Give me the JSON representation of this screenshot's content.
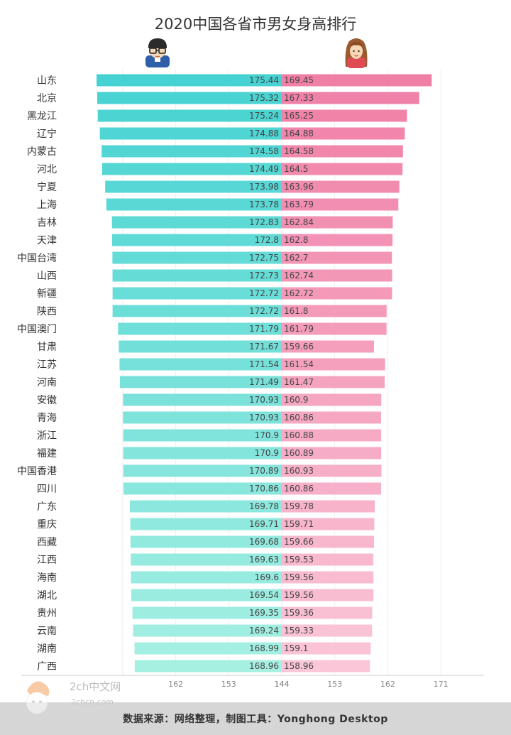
{
  "chart_data": {
    "type": "bar",
    "title": "2020中国各省市男女身高排行",
    "categories": [
      "山东",
      "北京",
      "黑龙江",
      "辽宁",
      "内蒙古",
      "河北",
      "宁夏",
      "上海",
      "吉林",
      "天津",
      "中国台湾",
      "山西",
      "新疆",
      "陕西",
      "中国澳门",
      "甘肃",
      "江苏",
      "河南",
      "安徽",
      "青海",
      "浙江",
      "福建",
      "中国香港",
      "四川",
      "广东",
      "重庆",
      "西藏",
      "江西",
      "海南",
      "湖北",
      "贵州",
      "云南",
      "湖南",
      "广西"
    ],
    "series": [
      {
        "values": [
          175.44,
          175.32,
          175.24,
          174.88,
          174.58,
          174.49,
          173.98,
          173.78,
          172.83,
          172.8,
          172.75,
          172.73,
          172.72,
          172.72,
          171.79,
          171.67,
          171.54,
          171.49,
          170.93,
          170.93,
          170.9,
          170.9,
          170.89,
          170.86,
          169.78,
          169.71,
          169.68,
          169.63,
          169.6,
          169.54,
          169.35,
          169.24,
          168.99,
          168.96
        ]
      },
      {
        "values": [
          169.45,
          167.33,
          165.25,
          164.88,
          164.58,
          164.5,
          163.96,
          163.79,
          162.84,
          162.8,
          162.7,
          162.74,
          162.72,
          161.8,
          161.79,
          159.66,
          161.54,
          161.47,
          160.9,
          160.86,
          160.88,
          160.89,
          160.93,
          160.86,
          159.78,
          159.71,
          159.66,
          159.53,
          159.56,
          159.56,
          159.36,
          159.33,
          159.1,
          158.96
        ]
      }
    ],
    "x_ticks_left": [
      162,
      153,
      144
    ],
    "x_ticks_right": [
      144,
      153,
      162,
      171
    ],
    "colors": {
      "male_top": "#46d2d2",
      "male_bottom": "#a6f0e2",
      "female_top": "#f07fa6",
      "female_bottom": "#fac6d8"
    }
  },
  "icons": {
    "male": "man-glasses-avatar-icon",
    "female": "woman-avatar-icon"
  },
  "footer": {
    "source": "数据来源：网络整理，制图工具：Yonghong Desktop"
  },
  "watermark": {
    "text": "2ch中文网",
    "url": "2chcn.com"
  }
}
